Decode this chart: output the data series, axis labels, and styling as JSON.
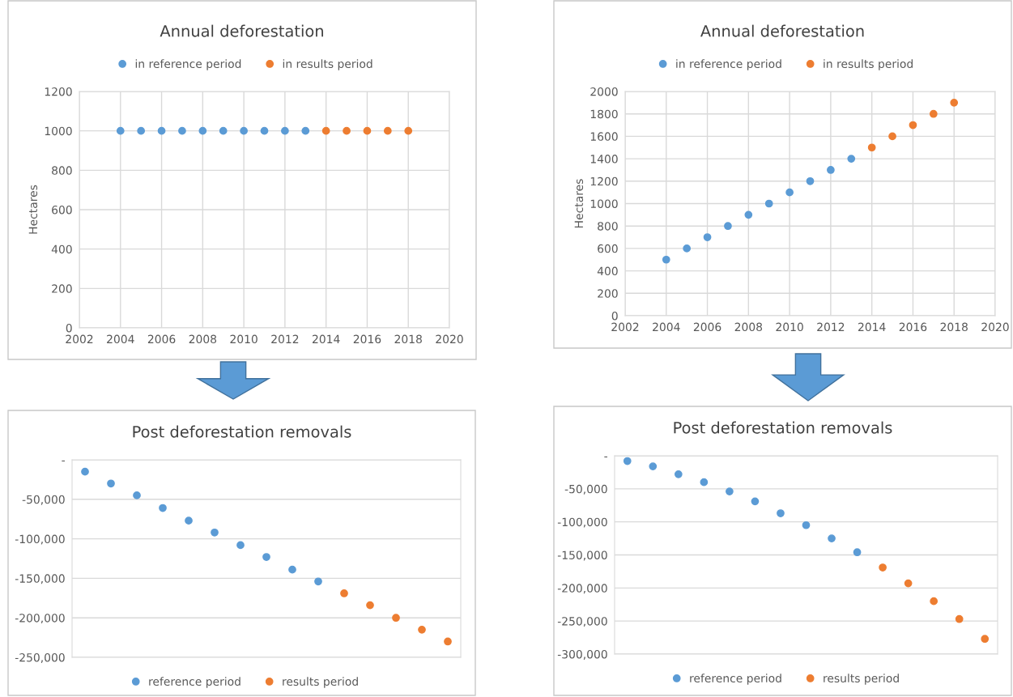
{
  "chart_data": [
    {
      "type": "scatter",
      "title": "Annual deforestation",
      "ylabel": "Hectares",
      "legend": "top",
      "grid": true,
      "marker": "circle",
      "series": [
        {
          "name": "in reference period",
          "color": "#5b9bd5",
          "x": [
            2004,
            2005,
            2006,
            2007,
            2008,
            2009,
            2010,
            2011,
            2012,
            2013
          ],
          "values": [
            1000,
            1000,
            1000,
            1000,
            1000,
            1000,
            1000,
            1000,
            1000,
            1000
          ]
        },
        {
          "name": "in results period",
          "color": "#ed7d31",
          "x": [
            2014,
            2015,
            2016,
            2017,
            2018
          ],
          "values": [
            1000,
            1000,
            1000,
            1000,
            1000
          ]
        }
      ],
      "xlim": [
        2002,
        2020
      ],
      "xticks": [
        2002,
        2004,
        2006,
        2008,
        2010,
        2012,
        2014,
        2016,
        2018,
        2020
      ],
      "ylim": [
        0,
        1200
      ],
      "yticks": [
        0,
        200,
        400,
        600,
        800,
        1000,
        1200
      ]
    },
    {
      "type": "scatter",
      "title": "Annual deforestation",
      "ylabel": "Hectares",
      "legend": "top",
      "grid": true,
      "marker": "circle",
      "series": [
        {
          "name": "in reference period",
          "color": "#5b9bd5",
          "x": [
            2004,
            2005,
            2006,
            2007,
            2008,
            2009,
            2010,
            2011,
            2012,
            2013
          ],
          "values": [
            500,
            600,
            700,
            800,
            900,
            1000,
            1100,
            1200,
            1300,
            1400
          ]
        },
        {
          "name": "in results period",
          "color": "#ed7d31",
          "x": [
            2014,
            2015,
            2016,
            2017,
            2018
          ],
          "values": [
            1500,
            1600,
            1700,
            1800,
            1900
          ]
        }
      ],
      "xlim": [
        2002,
        2020
      ],
      "xticks": [
        2002,
        2004,
        2006,
        2008,
        2010,
        2012,
        2014,
        2016,
        2018,
        2020
      ],
      "ylim": [
        0,
        2000
      ],
      "yticks": [
        0,
        200,
        400,
        600,
        800,
        1000,
        1200,
        1400,
        1600,
        1800,
        2000
      ]
    },
    {
      "type": "scatter",
      "title": "Post deforestation removals",
      "legend": "bottom",
      "grid": true,
      "marker": "circle",
      "categories": [
        null,
        null,
        null,
        null,
        null,
        null,
        null,
        null,
        null,
        null,
        null,
        null,
        null,
        null,
        null
      ],
      "series": [
        {
          "name": "reference period",
          "color": "#5b9bd5",
          "values": [
            -15000,
            -30000,
            -45000,
            -61000,
            -77000,
            -92000,
            -108000,
            -123000,
            -139000,
            -154000,
            null,
            null,
            null,
            null,
            null
          ]
        },
        {
          "name": "results period",
          "color": "#ed7d31",
          "values": [
            null,
            null,
            null,
            null,
            null,
            null,
            null,
            null,
            null,
            null,
            -169000,
            -184000,
            -200000,
            -215000,
            -230000
          ]
        }
      ],
      "ylim": [
        -250000,
        0
      ],
      "yticks": [
        {
          "value": -250000,
          "label": "-250,000"
        },
        {
          "value": -200000,
          "label": "-200,000"
        },
        {
          "value": -150000,
          "label": "-150,000"
        },
        {
          "value": -100000,
          "label": "-100,000"
        },
        {
          "value": -50000,
          "label": "-50,000"
        },
        {
          "value": 0,
          "label": "-"
        }
      ]
    },
    {
      "type": "scatter",
      "title": "Post deforestation removals",
      "legend": "bottom",
      "grid": true,
      "marker": "circle",
      "categories": [
        null,
        null,
        null,
        null,
        null,
        null,
        null,
        null,
        null,
        null,
        null,
        null,
        null,
        null,
        null
      ],
      "series": [
        {
          "name": "reference period",
          "color": "#5b9bd5",
          "values": [
            -8000,
            -16000,
            -28000,
            -40000,
            -54000,
            -69000,
            -87000,
            -105000,
            -125000,
            -146000,
            null,
            null,
            null,
            null,
            null
          ]
        },
        {
          "name": "results period",
          "color": "#ed7d31",
          "values": [
            null,
            null,
            null,
            null,
            null,
            null,
            null,
            null,
            null,
            null,
            -169000,
            -193000,
            -220000,
            -247000,
            -277000
          ]
        }
      ],
      "ylim": [
        -300000,
        0
      ],
      "yticks": [
        {
          "value": -300000,
          "label": "-300,000"
        },
        {
          "value": -250000,
          "label": "-250,000"
        },
        {
          "value": -200000,
          "label": "-200,000"
        },
        {
          "value": -150000,
          "label": "-150,000"
        },
        {
          "value": -100000,
          "label": "-100,000"
        },
        {
          "value": -50000,
          "label": "-50,000"
        },
        {
          "value": 0,
          "label": "-"
        }
      ]
    }
  ]
}
